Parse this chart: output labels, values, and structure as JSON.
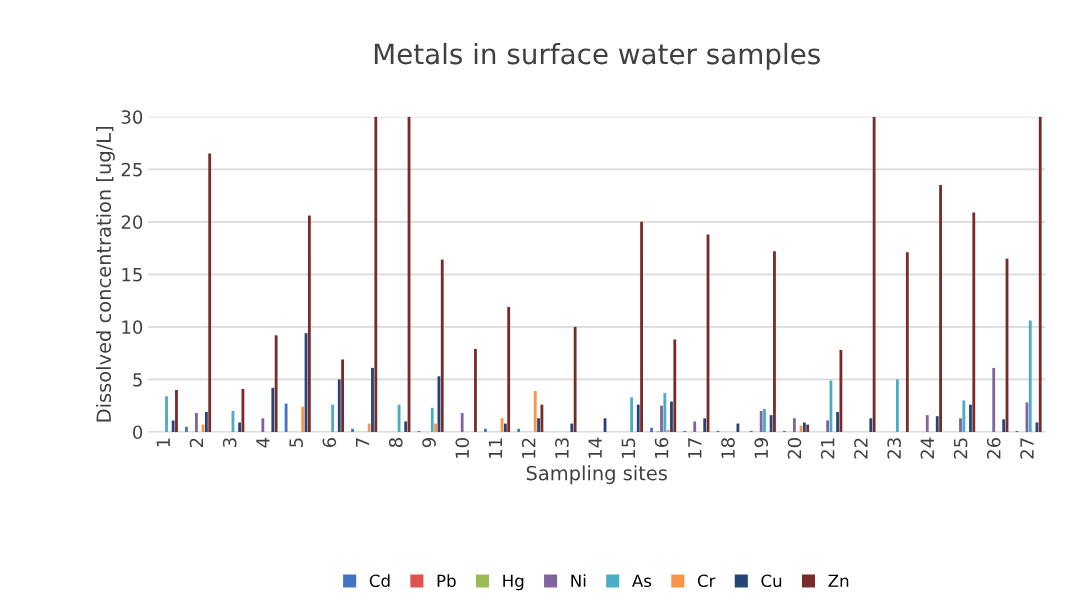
{
  "chart_data": {
    "type": "bar",
    "title": "Metals in surface water samples",
    "xlabel": "Sampling sites",
    "ylabel": "Dissolved concentration [ug/L]",
    "categories": [
      "1",
      "2",
      "3",
      "4",
      "5",
      "6",
      "7",
      "8",
      "9",
      "10",
      "11",
      "12",
      "13",
      "14",
      "15",
      "16",
      "17",
      "18",
      "19",
      "20",
      "21",
      "22",
      "23",
      "24",
      "25",
      "26",
      "27"
    ],
    "series": [
      {
        "name": "Cd",
        "color": "#4472c4",
        "values": [
          null,
          0.5,
          null,
          null,
          2.7,
          null,
          0.3,
          null,
          0.1,
          null,
          0.3,
          0.3,
          null,
          null,
          null,
          0.4,
          0.1,
          0.1,
          0.1,
          0.1,
          null,
          null,
          null,
          null,
          null,
          null,
          0.1
        ]
      },
      {
        "name": "Pb",
        "color": "#e0524f",
        "values": [
          null,
          null,
          null,
          null,
          null,
          null,
          null,
          null,
          null,
          null,
          null,
          null,
          null,
          null,
          null,
          null,
          null,
          null,
          null,
          null,
          null,
          null,
          null,
          null,
          null,
          null,
          null
        ]
      },
      {
        "name": "Hg",
        "color": "#9bbb59",
        "values": [
          null,
          null,
          null,
          null,
          null,
          null,
          null,
          null,
          null,
          null,
          null,
          null,
          null,
          null,
          null,
          0.1,
          null,
          null,
          null,
          null,
          null,
          null,
          null,
          null,
          null,
          null,
          null
        ]
      },
      {
        "name": "Ni",
        "color": "#8064a2",
        "values": [
          null,
          1.8,
          null,
          1.3,
          null,
          null,
          null,
          null,
          null,
          1.8,
          null,
          null,
          null,
          null,
          null,
          2.5,
          1.0,
          null,
          2.0,
          1.3,
          1.1,
          null,
          null,
          1.6,
          1.3,
          6.1,
          2.8
        ]
      },
      {
        "name": "As",
        "color": "#4bacc6",
        "values": [
          3.4,
          null,
          2.0,
          null,
          null,
          2.6,
          null,
          2.6,
          2.3,
          null,
          null,
          null,
          null,
          null,
          3.3,
          3.7,
          null,
          null,
          2.2,
          null,
          4.9,
          null,
          5.0,
          null,
          3.0,
          null,
          10.6
        ]
      },
      {
        "name": "Cr",
        "color": "#f79646",
        "values": [
          null,
          0.7,
          null,
          null,
          2.4,
          null,
          0.8,
          null,
          0.8,
          null,
          1.3,
          3.9,
          null,
          null,
          null,
          0.2,
          null,
          null,
          null,
          0.6,
          null,
          null,
          null,
          null,
          null,
          null,
          null
        ]
      },
      {
        "name": "Cu",
        "color": "#264478",
        "values": [
          1.1,
          1.9,
          0.9,
          4.2,
          9.4,
          5.0,
          6.1,
          1.0,
          5.3,
          null,
          0.8,
          1.3,
          0.8,
          1.3,
          2.6,
          2.9,
          1.3,
          0.8,
          1.6,
          0.9,
          1.9,
          1.3,
          null,
          1.5,
          2.6,
          1.2,
          0.9
        ]
      },
      {
        "name": "Zn",
        "color": "#772c2a",
        "values": [
          4.0,
          26.5,
          4.1,
          9.2,
          20.6,
          6.9,
          30,
          30,
          16.4,
          7.9,
          11.9,
          2.6,
          10.0,
          null,
          20.0,
          8.8,
          18.8,
          null,
          17.2,
          0.7,
          7.8,
          30,
          17.1,
          23.5,
          20.9,
          16.5,
          30
        ]
      }
    ],
    "ylim": [
      0,
      30
    ],
    "yticks": [
      0,
      5,
      10,
      15,
      20,
      25,
      30
    ],
    "grid": "y",
    "legend": "bottom"
  }
}
